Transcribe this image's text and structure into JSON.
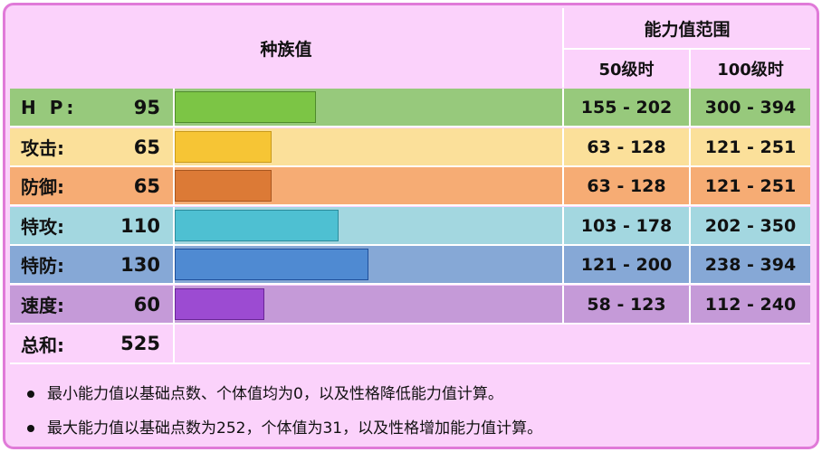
{
  "header": {
    "base_stats_title": "种族值",
    "stat_range_title": "能力值范围",
    "level50_label": "50级时",
    "level100_label": "100级时"
  },
  "stats": [
    {
      "name": "H P:",
      "value": "95",
      "value_num": 95,
      "range50": "155 - 202",
      "range100": "300 - 394",
      "bg_color": "#97c97c",
      "bar_color": "#7cc545",
      "bar_border": "#4f8a2b"
    },
    {
      "name": "攻击:",
      "value": "65",
      "value_num": 65,
      "range50": "63 - 128",
      "range100": "121 - 251",
      "bg_color": "#fbe09a",
      "bar_color": "#f6c535",
      "bar_border": "#c89a1c"
    },
    {
      "name": "防御:",
      "value": "65",
      "value_num": 65,
      "range50": "63 - 128",
      "range100": "121 - 251",
      "bg_color": "#f6ac74",
      "bar_color": "#dc7a36",
      "bar_border": "#a8561f"
    },
    {
      "name": "特攻:",
      "value": "110",
      "value_num": 110,
      "range50": "103 - 178",
      "range100": "202 - 350",
      "bg_color": "#a3d7e0",
      "bar_color": "#4ec0d2",
      "bar_border": "#2c8c9c"
    },
    {
      "name": "特防:",
      "value": "130",
      "value_num": 130,
      "range50": "121 - 200",
      "range100": "238 - 394",
      "bg_color": "#86a8d6",
      "bar_color": "#4f8ad2",
      "bar_border": "#1f4f9a"
    },
    {
      "name": "速度:",
      "value": "60",
      "value_num": 60,
      "range50": "58 - 123",
      "range100": "112 - 240",
      "bg_color": "#c59ad8",
      "bar_color": "#9c4bd2",
      "bar_border": "#6a2596"
    }
  ],
  "total": {
    "name": "总和:",
    "value": "525"
  },
  "notes": [
    "最小能力值以基础点数、个体值均为0，以及性格降低能力值计算。",
    "最大能力值以基础点数为252，个体值为31，以及性格增加能力值计算。"
  ]
}
